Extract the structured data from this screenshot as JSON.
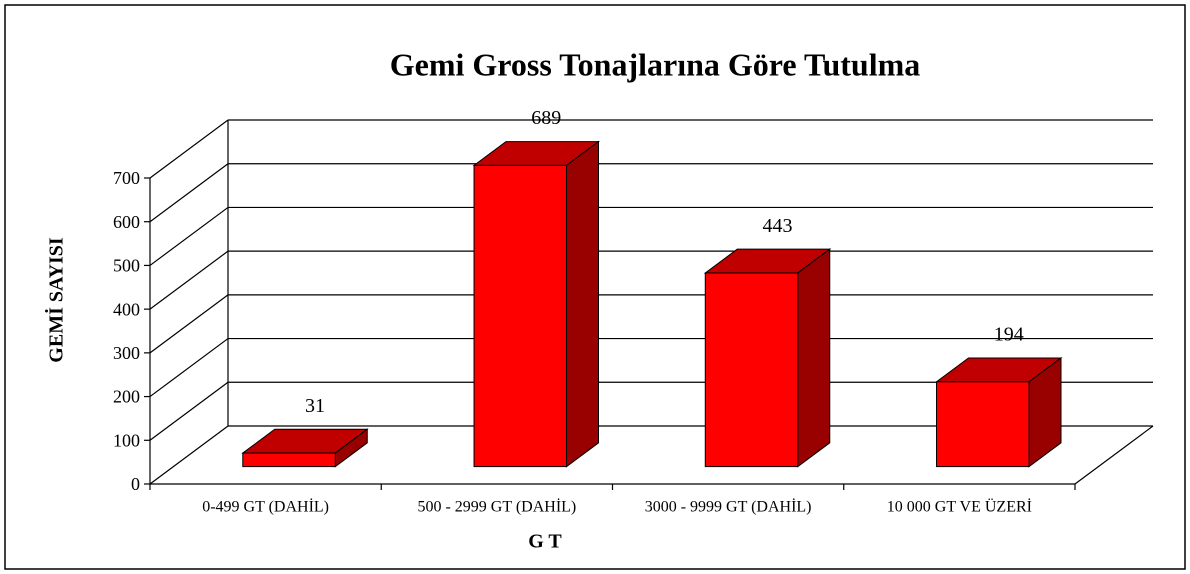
{
  "chart_data": {
    "type": "bar3d",
    "title": "Gemi Gross Tonajlarına Göre  Tutulma",
    "categories": [
      "0-499 GT (DAHİL)",
      "500 - 2999 GT (DAHİL)",
      "3000 - 9999 GT (DAHİL)",
      "10 000 GT VE ÜZERİ"
    ],
    "values": [
      31,
      689,
      443,
      194
    ],
    "colors": {
      "front": "#ff0000",
      "top": "#c00000",
      "side": "#990000"
    },
    "xlabel": "G T",
    "ylabel": "GEMİ SAYISI",
    "ylim": [
      0,
      700
    ],
    "yticks": [
      0,
      100,
      200,
      300,
      400,
      500,
      600,
      700
    ],
    "grid": true
  }
}
